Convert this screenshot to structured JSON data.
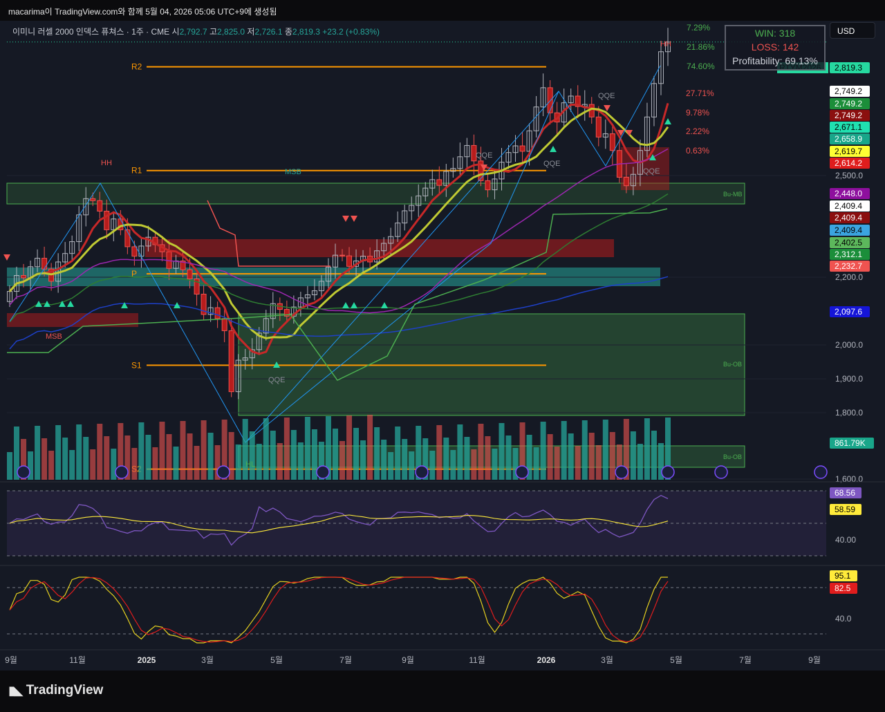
{
  "header": {
    "title": "macarima이 TradingView.com와 함께 5월 04, 2026 05:06 UTC+9에 생성됨"
  },
  "legend": {
    "symbol": "이미니 러셀 2000 인덱스 퓨쳐스 · 1주 · CME",
    "open_label": "시",
    "open": "2,792.7",
    "high_label": "고",
    "high": "2,825.0",
    "low_label": "저",
    "low": "2,726.1",
    "close_label": "종",
    "close": "2,819.3",
    "change": "+23.2 (+0.83%)"
  },
  "currency": "USD",
  "stats_box": {
    "win": "WIN: 318",
    "loss": "LOSS: 142",
    "profitability": "Profitability: 69.13%"
  },
  "percent_labels": [
    {
      "text": "7.29%",
      "color": "#4caf50"
    },
    {
      "text": "21.86%",
      "color": "#4caf50"
    },
    {
      "text": "74.60%",
      "color": "#4caf50"
    },
    {
      "text": "27.71%",
      "color": "#ef5350"
    },
    {
      "text": "9.78%",
      "color": "#ef5350"
    },
    {
      "text": "2.22%",
      "color": "#ef5350"
    },
    {
      "text": "0.63%",
      "color": "#ef5350"
    }
  ],
  "ticker_tag": "RTYM2026",
  "price_tags": [
    {
      "text": "2,819.3",
      "bg": "#26d9a0",
      "fg": "#000000",
      "y": 2819.3
    },
    {
      "text": "2,749.2",
      "bg": "#ffffff",
      "fg": "#000000",
      "y": 2749.2
    },
    {
      "text": "2,749.2",
      "bg": "#1b8e3a",
      "fg": "#ffffff",
      "y": 2749.2
    },
    {
      "text": "2,749.2",
      "bg": "#8b0f0f",
      "fg": "#ffffff",
      "y": 2749.2
    },
    {
      "text": "2,671.1",
      "bg": "#20e0b0",
      "fg": "#000000",
      "y": 2671.1
    },
    {
      "text": "2,658.9",
      "bg": "#19a68a",
      "fg": "#ffffff",
      "y": 2658.9
    },
    {
      "text": "2,619.7",
      "bg": "#ffff33",
      "fg": "#000000",
      "y": 2619.7
    },
    {
      "text": "2,614.2",
      "bg": "#e01d1d",
      "fg": "#ffffff",
      "y": 2614.2
    },
    {
      "text": "2,448.0",
      "bg": "#8e0f9e",
      "fg": "#ffffff",
      "y": 2448.0
    },
    {
      "text": "2,409.4",
      "bg": "#ffffff",
      "fg": "#000000",
      "y": 2409.4
    },
    {
      "text": "2,409.4",
      "bg": "#8b0f0f",
      "fg": "#ffffff",
      "y": 2409.4
    },
    {
      "text": "2,409.4",
      "bg": "#3ba4e0",
      "fg": "#000000",
      "y": 2409.4
    },
    {
      "text": "2,402.5",
      "bg": "#5cb85c",
      "fg": "#000000",
      "y": 2402.5
    },
    {
      "text": "2,312.1",
      "bg": "#1b8e3a",
      "fg": "#ffffff",
      "y": 2312.1
    },
    {
      "text": "2,232.7",
      "bg": "#ef5350",
      "fg": "#ffffff",
      "y": 2232.7
    },
    {
      "text": "2,097.6",
      "bg": "#1515d8",
      "fg": "#ffffff",
      "y": 2097.6
    }
  ],
  "volume_tag": "861.79K",
  "rsi_tags": [
    {
      "text": "68.56",
      "bg": "#7e57c2"
    },
    {
      "text": "58.59",
      "bg": "#ffeb3b"
    }
  ],
  "stoch_tags": [
    {
      "text": "95.1",
      "bg": "#ffeb3b"
    },
    {
      "text": "82.5",
      "bg": "#e01d1d"
    }
  ],
  "chart_data": {
    "type": "candlestick",
    "y_axis_ticks": [
      "2,500.0",
      "2,200.0",
      "2,000.0",
      "1,900.0",
      "1,800.0",
      "1,600.0"
    ],
    "y_axis_values": [
      2500,
      2200,
      2000,
      1900,
      1800,
      1600
    ],
    "ylim": [
      1600,
      2870
    ],
    "x_axis_ticks": [
      "9월",
      "11월",
      "2025",
      "3월",
      "5월",
      "7월",
      "9월",
      "11월",
      "2026",
      "3월",
      "5월",
      "7월",
      "9월"
    ],
    "pivot_labels": [
      "R2",
      "R1",
      "P",
      "S1",
      "S2"
    ],
    "pivot_values": [
      2760,
      2512,
      2210,
      1940,
      1630
    ],
    "annotations": [
      "MSB",
      "MSB",
      "QQE",
      "QQE",
      "QQE",
      "QQE",
      "QQE",
      "Bu-MB",
      "Bu-OB",
      "Bu-OB",
      "HH",
      "HH",
      "HL"
    ],
    "weekly_close": [
      2158,
      2205,
      2198,
      2231,
      2256,
      2224,
      2188,
      2245,
      2270,
      2305,
      2384,
      2432,
      2426,
      2395,
      2340,
      2372,
      2340,
      2290,
      2262,
      2292,
      2318,
      2296,
      2275,
      2226,
      2248,
      2222,
      2195,
      2150,
      2090,
      2110,
      2078,
      2042,
      1862,
      1955,
      1962,
      1986,
      2035,
      2078,
      2122,
      2105,
      2085,
      2112,
      2139,
      2148,
      2160,
      2188,
      2230,
      2265,
      2263,
      2232,
      2248,
      2262,
      2245,
      2278,
      2300,
      2320,
      2360,
      2396,
      2412,
      2440,
      2463,
      2488,
      2471,
      2510,
      2517,
      2545,
      2572,
      2535,
      2485,
      2458,
      2490,
      2532,
      2555,
      2571,
      2558,
      2607,
      2664,
      2710,
      2650,
      2628,
      2674,
      2690,
      2665,
      2670,
      2640,
      2592,
      2600,
      2560,
      2495,
      2470,
      2503,
      2560,
      2640,
      2720,
      2796,
      2819
    ],
    "rsi": {
      "values_label": [
        "68.56",
        "58.59"
      ],
      "tick": "40.00"
    },
    "stoch": {
      "values_label": [
        "95.1",
        "82.5"
      ],
      "tick": "40.0"
    }
  }
}
